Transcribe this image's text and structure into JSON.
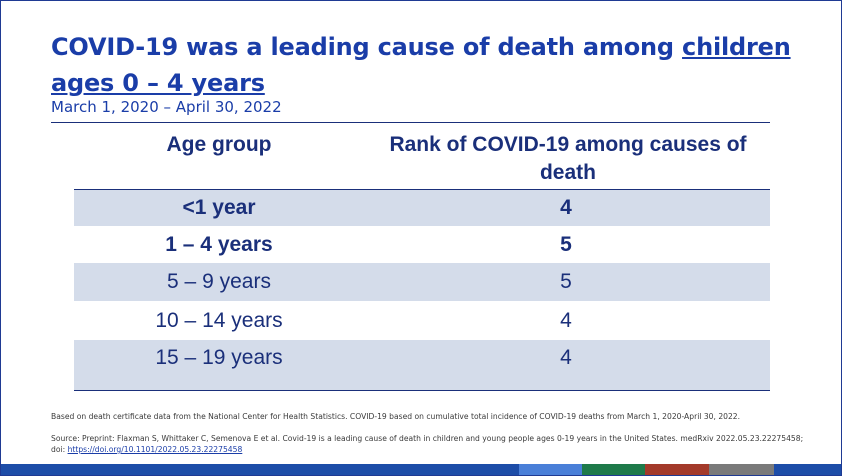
{
  "title": {
    "part1": "COVID-19 was a leading cause of death among ",
    "part2": "children ages 0 – 4 years"
  },
  "subtitle": "March 1, 2020 – April 30, 2022",
  "table": {
    "headers": [
      "Age group",
      "Rank of COVID-19 among causes of death"
    ],
    "rows": [
      {
        "age": "<1 year",
        "rank": "4"
      },
      {
        "age": "1 – 4 years",
        "rank": "5"
      },
      {
        "age": "5 – 9 years",
        "rank": "5"
      },
      {
        "age": "10 – 14 years",
        "rank": "4"
      },
      {
        "age": "15 – 19 years",
        "rank": "4"
      }
    ]
  },
  "footnote": {
    "line1": "Based on death certificate data from the National Center for Health Statistics. COVID-19 based on cumulative total incidence of COVID-19 deaths from March 1, 2020-April 30, 2022.",
    "line2": "Source: Preprint: Flaxman S, Whittaker C, Semenova E et al. Covid-19 is a leading cause of death in children and young people ages 0-19 years in the United States. medRxiv 2022.05.23.22275458; doi: ",
    "link": "https://doi.org/10.1101/2022.05.23.22275458"
  },
  "colors": {
    "title": "#1a3da8",
    "table_text": "#1a2f7a",
    "shaded_row": "#d4dcea",
    "bottom_bar": [
      "#1d4da8",
      "#4a7fd8",
      "#1e7a4a",
      "#a33a2a",
      "#7a7a7a",
      "#1d4da8"
    ]
  }
}
